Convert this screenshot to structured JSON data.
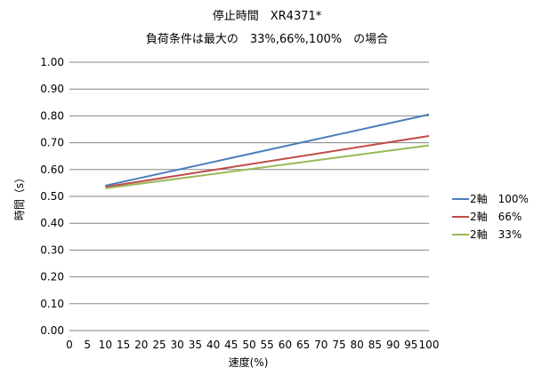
{
  "chart_data": {
    "type": "line",
    "title": "停止時間　XR4371*",
    "subtitle": "負荷条件は最大の　33%,66%,100%　の場合",
    "xlabel": "速度(%)",
    "ylabel": "時間（s）",
    "xlim": [
      0,
      100
    ],
    "ylim": [
      0,
      1.0
    ],
    "x_ticks": [
      0,
      5,
      10,
      15,
      20,
      25,
      30,
      35,
      40,
      45,
      50,
      55,
      60,
      65,
      70,
      75,
      80,
      85,
      90,
      95,
      100
    ],
    "x_tick_labels": [
      "0",
      "5",
      "10",
      "15",
      "20",
      "25",
      "30",
      "35",
      "40",
      "45",
      "50",
      "55",
      "60",
      "65",
      "70",
      "75",
      "80",
      "85",
      "90",
      "95",
      "100"
    ],
    "y_ticks": [
      0,
      0.1,
      0.2,
      0.3,
      0.4,
      0.5,
      0.6,
      0.7,
      0.8,
      0.9,
      1.0
    ],
    "y_tick_labels": [
      "0.00",
      "0.10",
      "0.20",
      "0.30",
      "0.40",
      "0.50",
      "0.60",
      "0.70",
      "0.80",
      "0.90",
      "1.00"
    ],
    "grid": "horizontal",
    "legend_position": "right",
    "series": [
      {
        "name": "2軸　100%",
        "color": "#4a7ebb",
        "x": [
          10,
          100
        ],
        "y": [
          0.54,
          0.805
        ]
      },
      {
        "name": "2軸　66%",
        "color": "#be4b48",
        "x": [
          10,
          100
        ],
        "y": [
          0.535,
          0.725
        ]
      },
      {
        "name": "2軸　33%",
        "color": "#98b954",
        "x": [
          10,
          100
        ],
        "y": [
          0.53,
          0.69
        ]
      }
    ]
  }
}
